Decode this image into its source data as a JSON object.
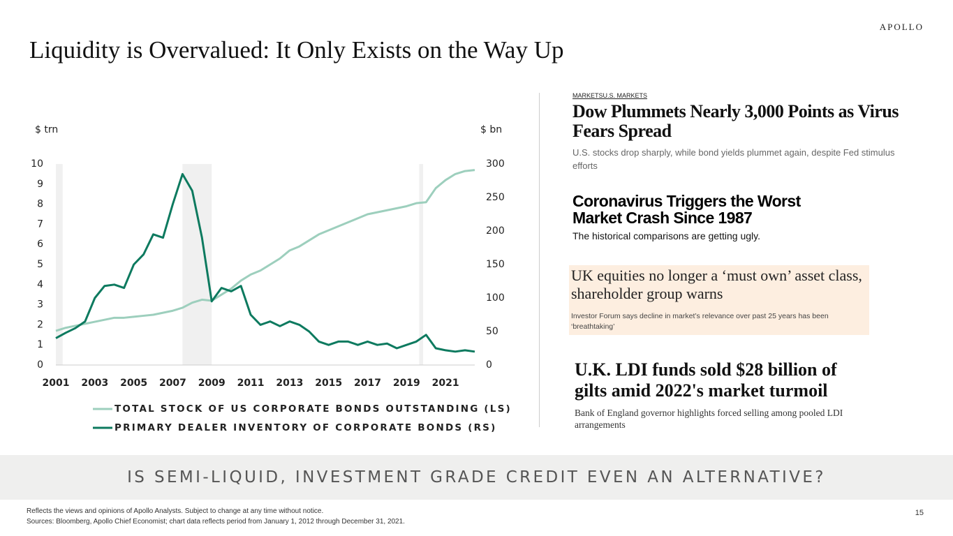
{
  "header": {
    "brand": "APOLLO",
    "title": "Liquidity is Overvalued: It Only Exists on the Way Up"
  },
  "chart_data": {
    "type": "line",
    "y_label": "$ trn",
    "y2_label": "$ bn",
    "x": [
      2001,
      2001.5,
      2002,
      2002.5,
      2003,
      2003.5,
      2004,
      2004.5,
      2005,
      2005.5,
      2006,
      2006.5,
      2007,
      2007.5,
      2008,
      2008.5,
      2009,
      2009.5,
      2010,
      2010.5,
      2011,
      2011.5,
      2012,
      2012.5,
      2013,
      2013.5,
      2014,
      2014.5,
      2015,
      2015.5,
      2016,
      2016.5,
      2017,
      2017.5,
      2018,
      2018.5,
      2019,
      2019.5,
      2020,
      2020.5,
      2021,
      2021.5,
      2022,
      2022.5
    ],
    "xlim": [
      2001,
      2022.5
    ],
    "xticks": [
      2001,
      2003,
      2005,
      2007,
      2009,
      2011,
      2013,
      2015,
      2017,
      2019,
      2021
    ],
    "ylim": [
      0,
      10
    ],
    "yticks": [
      0,
      1,
      2,
      3,
      4,
      5,
      6,
      7,
      8,
      9,
      10
    ],
    "y2lim": [
      0,
      300
    ],
    "y2ticks": [
      0,
      50,
      100,
      150,
      200,
      250,
      300
    ],
    "shaded_periods": [
      [
        2001,
        2001.35
      ],
      [
        2007.5,
        2009
      ],
      [
        2019.65,
        2019.85
      ]
    ],
    "shade_color": "#f0f0f0",
    "series": [
      {
        "name": "TOTAL STOCK OF US CORPORATE BONDS OUTSTANDING (LS)",
        "color": "#9dcfbd",
        "values": [
          1.7,
          1.85,
          1.95,
          2.05,
          2.15,
          2.25,
          2.35,
          2.35,
          2.4,
          2.45,
          2.5,
          2.6,
          2.7,
          2.85,
          3.1,
          3.25,
          3.2,
          3.5,
          3.8,
          4.2,
          4.5,
          4.7,
          5.0,
          5.3,
          5.7,
          5.9,
          6.2,
          6.5,
          6.7,
          6.9,
          7.1,
          7.3,
          7.5,
          7.6,
          7.7,
          7.8,
          7.9,
          8.05,
          8.1,
          8.8,
          9.2,
          9.5,
          9.65,
          9.7
        ]
      },
      {
        "name": "PRIMARY DEALER INVENTORY OF CORPORATE BONDS (RS)",
        "color": "#0d7a5f",
        "axis": "y2",
        "values": [
          40,
          48,
          55,
          65,
          100,
          118,
          120,
          115,
          150,
          165,
          195,
          190,
          240,
          285,
          260,
          190,
          95,
          115,
          110,
          118,
          75,
          60,
          65,
          58,
          65,
          60,
          50,
          35,
          30,
          35,
          35,
          30,
          35,
          30,
          32,
          25,
          30,
          35,
          45,
          25,
          22,
          20,
          22,
          20
        ]
      }
    ]
  },
  "news": [
    {
      "kicker": "MARKETSU.S. MARKETS",
      "headline": "Dow Plummets Nearly 3,000 Points as Virus Fears Spread",
      "subhead": "U.S. stocks drop sharply, while bond yields plummet again, despite Fed stimulus efforts"
    },
    {
      "headline": "Coronavirus Triggers the Worst Market Crash Since 1987",
      "subhead": "The historical comparisons are getting ugly."
    },
    {
      "headline": "UK equities no longer a ‘must own’ asset class, shareholder group warns",
      "subhead": "Investor Forum says decline in market’s relevance over past 25 years has been ‘breathtaking’"
    },
    {
      "headline": "U.K. LDI funds sold $28 billion of gilts amid 2022's market turmoil",
      "subhead": "Bank of England governor highlights forced selling among pooled LDI arrangements"
    }
  ],
  "banner": "IS SEMI-LIQUID, INVESTMENT GRADE CREDIT EVEN AN ALTERNATIVE?",
  "footer": {
    "note": "Reflects the views and opinions of Apollo Analysts. Subject to change at any time without notice.",
    "sources": "Sources: Bloomberg, Apollo Chief Economist; chart data reflects period from January 1, 2012 through December 31, 2021.",
    "page": "15"
  }
}
